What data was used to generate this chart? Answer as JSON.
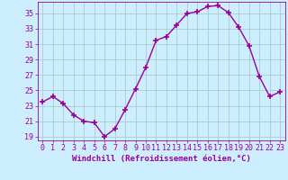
{
  "x": [
    0,
    1,
    2,
    3,
    4,
    5,
    6,
    7,
    8,
    9,
    10,
    11,
    12,
    13,
    14,
    15,
    16,
    17,
    18,
    19,
    20,
    21,
    22,
    23
  ],
  "y": [
    23.5,
    24.2,
    23.3,
    21.8,
    21.0,
    20.8,
    19.0,
    20.0,
    22.5,
    25.2,
    28.0,
    31.5,
    32.0,
    33.5,
    35.0,
    35.2,
    35.9,
    36.0,
    35.1,
    33.2,
    30.8,
    26.8,
    24.2,
    24.8
  ],
  "line_color": "#990099",
  "marker": "+",
  "marker_size": 4,
  "marker_linewidth": 1.2,
  "background_color": "#cceeff",
  "grid_color": "#aacccc",
  "tick_color": "#990099",
  "label_color": "#990099",
  "xlabel": "Windchill (Refroidissement éolien,°C)",
  "ylabel": "",
  "ylim": [
    18.5,
    36.5
  ],
  "xlim": [
    -0.5,
    23.5
  ],
  "yticks": [
    19,
    21,
    23,
    25,
    27,
    29,
    31,
    33,
    35
  ],
  "xticks": [
    0,
    1,
    2,
    3,
    4,
    5,
    6,
    7,
    8,
    9,
    10,
    11,
    12,
    13,
    14,
    15,
    16,
    17,
    18,
    19,
    20,
    21,
    22,
    23
  ],
  "font_family": "monospace",
  "tick_fontsize": 6.0,
  "xlabel_fontsize": 6.5
}
